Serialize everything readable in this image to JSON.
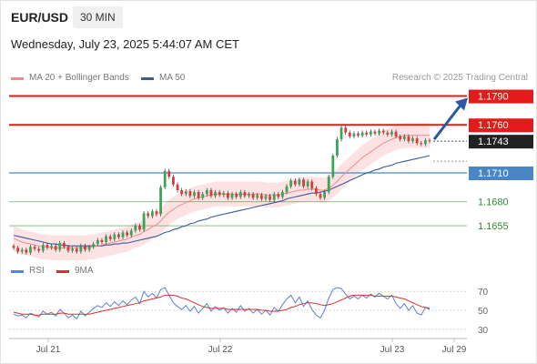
{
  "header": {
    "symbol": "EUR/USD",
    "timeframe": "30 MIN",
    "datetime": "Wednesday, July 23, 2025 5:44:07 AM CET",
    "credit": "Research © 2025 Trading Central"
  },
  "legend": {
    "ma20": "MA 20 + Bollinger Bands",
    "ma50": "MA 50",
    "rsi": "RSI",
    "ma9": "9MA"
  },
  "colors": {
    "resistance": "#e31b1b",
    "pivot": "#4a86c5",
    "support": "#2e8b2e",
    "bullish_candle": "#3aa655",
    "bearish_candle": "#d93a3a",
    "ma20": "#f08a8a",
    "ma50": "#3a5a9a",
    "bollinger_fill": "#fbd5d5",
    "rsi": "#5a82d2",
    "rsi_ma": "#d93030",
    "arrow": "#2a5aa6"
  },
  "chart_data": [
    {
      "type": "candlestick",
      "ylim": [
        1.162,
        1.18
      ],
      "x_ticks": [
        "Jul 21",
        "Jul 22",
        "Jul 23",
        "Jul 29"
      ],
      "levels": [
        {
          "value": 1.179,
          "label": "1.1790",
          "kind": "resistance"
        },
        {
          "value": 1.176,
          "label": "1.1760",
          "kind": "resistance"
        },
        {
          "value": 1.1743,
          "label": "1.1743",
          "kind": "current"
        },
        {
          "value": 1.171,
          "label": "1.1710",
          "kind": "pivot"
        },
        {
          "value": 1.168,
          "label": "1.1680",
          "kind": "support"
        },
        {
          "value": 1.1655,
          "label": "1.1655",
          "kind": "support"
        }
      ],
      "close": [
        1.1632,
        1.1628,
        1.163,
        1.1627,
        1.1633,
        1.1631,
        1.1629,
        1.1635,
        1.1632,
        1.1634,
        1.163,
        1.1637,
        1.1633,
        1.1629,
        1.1631,
        1.1628,
        1.1634,
        1.163,
        1.1633,
        1.1636,
        1.164,
        1.1638,
        1.1644,
        1.1641,
        1.1646,
        1.1643,
        1.1648,
        1.1645,
        1.165,
        1.1655,
        1.1651,
        1.1668,
        1.1665,
        1.167,
        1.1667,
        1.1695,
        1.1712,
        1.1706,
        1.1698,
        1.1692,
        1.1688,
        1.1691,
        1.1686,
        1.169,
        1.1684,
        1.1688,
        1.1692,
        1.1686,
        1.169,
        1.1687,
        1.1689,
        1.1684,
        1.1688,
        1.1685,
        1.169,
        1.1686,
        1.1688,
        1.1684,
        1.1687,
        1.1683,
        1.1686,
        1.1682,
        1.1688,
        1.1685,
        1.169,
        1.1696,
        1.1702,
        1.1698,
        1.1703,
        1.1696,
        1.1701,
        1.1694,
        1.1688,
        1.1684,
        1.169,
        1.1706,
        1.1728,
        1.1745,
        1.1757,
        1.1752,
        1.1748,
        1.1751,
        1.1749,
        1.1752,
        1.175,
        1.1753,
        1.1751,
        1.1754,
        1.1752,
        1.175,
        1.1753,
        1.1748,
        1.1745,
        1.1748,
        1.1743,
        1.1746,
        1.1741,
        1.174,
        1.1744,
        1.1743
      ],
      "ma20": [
        1.1642,
        1.164,
        1.1638,
        1.1637,
        1.1636,
        1.1635,
        1.1634,
        1.1633,
        1.1633,
        1.1632,
        1.1632,
        1.1632,
        1.1632,
        1.1632,
        1.1632,
        1.1632,
        1.1632,
        1.1632,
        1.1633,
        1.1633,
        1.1634,
        1.1635,
        1.1636,
        1.1637,
        1.1638,
        1.1639,
        1.164,
        1.1641,
        1.1643,
        1.1645,
        1.1646,
        1.1649,
        1.1651,
        1.1654,
        1.1656,
        1.166,
        1.1665,
        1.1669,
        1.1672,
        1.1675,
        1.1677,
        1.1679,
        1.1681,
        1.1683,
        1.1684,
        1.1685,
        1.1686,
        1.1687,
        1.1688,
        1.1688,
        1.1688,
        1.1688,
        1.1688,
        1.1688,
        1.1688,
        1.1688,
        1.1688,
        1.1688,
        1.1688,
        1.1688,
        1.1687,
        1.1687,
        1.1687,
        1.1687,
        1.1688,
        1.1689,
        1.169,
        1.1691,
        1.1692,
        1.1692,
        1.1693,
        1.1693,
        1.1693,
        1.1692,
        1.1692,
        1.1694,
        1.1697,
        1.1701,
        1.1706,
        1.171,
        1.1714,
        1.1718,
        1.1722,
        1.1726,
        1.1729,
        1.1732,
        1.1735,
        1.1738,
        1.1741,
        1.1743,
        1.1745,
        1.1747,
        1.1748,
        1.1749,
        1.1749,
        1.1749,
        1.1749,
        1.1749,
        1.1749,
        1.1749
      ],
      "ma50": [
        1.1645,
        1.1644,
        1.1643,
        1.1642,
        1.1641,
        1.164,
        1.1639,
        1.1638,
        1.1637,
        1.1636,
        1.1636,
        1.1635,
        1.1635,
        1.1634,
        1.1634,
        1.1634,
        1.1634,
        1.1634,
        1.1634,
        1.1634,
        1.1634,
        1.1634,
        1.1635,
        1.1635,
        1.1636,
        1.1636,
        1.1637,
        1.1637,
        1.1638,
        1.1639,
        1.164,
        1.1641,
        1.1642,
        1.1643,
        1.1644,
        1.1646,
        1.1648,
        1.1649,
        1.1651,
        1.1652,
        1.1654,
        1.1655,
        1.1657,
        1.1658,
        1.166,
        1.1661,
        1.1662,
        1.1664,
        1.1665,
        1.1666,
        1.1667,
        1.1668,
        1.1669,
        1.167,
        1.1671,
        1.1672,
        1.1673,
        1.1674,
        1.1675,
        1.1676,
        1.1677,
        1.1678,
        1.1679,
        1.168,
        1.1681,
        1.1683,
        1.1684,
        1.1685,
        1.1686,
        1.1687,
        1.1688,
        1.1689,
        1.1689,
        1.169,
        1.1691,
        1.1692,
        1.1694,
        1.1696,
        1.1698,
        1.17,
        1.1702,
        1.1704,
        1.1706,
        1.1708,
        1.171,
        1.1711,
        1.1713,
        1.1714,
        1.1716,
        1.1717,
        1.1718,
        1.172,
        1.1721,
        1.1722,
        1.1723,
        1.1724,
        1.1725,
        1.1726,
        1.1727,
        1.1728
      ]
    },
    {
      "type": "line",
      "name": "RSI",
      "ylim": [
        25,
        75
      ],
      "y_ticks": [
        70,
        50,
        30
      ],
      "series": [
        {
          "name": "RSI",
          "values": [
            46,
            44,
            45,
            42,
            47,
            45,
            43,
            49,
            46,
            48,
            44,
            51,
            47,
            42,
            45,
            41,
            49,
            44,
            48,
            52,
            55,
            53,
            58,
            54,
            59,
            55,
            60,
            56,
            61,
            64,
            57,
            70,
            64,
            68,
            63,
            72,
            74,
            66,
            58,
            54,
            51,
            55,
            49,
            54,
            47,
            52,
            57,
            49,
            54,
            50,
            53,
            47,
            52,
            48,
            55,
            49,
            52,
            47,
            51,
            46,
            50,
            45,
            53,
            49,
            56,
            62,
            66,
            58,
            64,
            54,
            60,
            51,
            45,
            42,
            50,
            63,
            72,
            74,
            73,
            67,
            62,
            65,
            62,
            66,
            63,
            67,
            64,
            68,
            65,
            62,
            66,
            57,
            52,
            57,
            50,
            55,
            47,
            45,
            53,
            51
          ]
        },
        {
          "name": "9MA",
          "values": [
            48,
            47,
            46,
            46,
            46,
            45,
            45,
            46,
            46,
            46,
            46,
            47,
            47,
            46,
            46,
            46,
            46,
            46,
            46,
            47,
            48,
            49,
            50,
            51,
            52,
            53,
            54,
            55,
            56,
            57,
            58,
            60,
            61,
            62,
            63,
            64,
            66,
            66,
            66,
            65,
            63,
            62,
            60,
            58,
            56,
            54,
            53,
            52,
            52,
            52,
            52,
            51,
            51,
            51,
            51,
            51,
            51,
            51,
            51,
            50,
            50,
            49,
            49,
            49,
            50,
            51,
            53,
            54,
            56,
            57,
            58,
            58,
            57,
            56,
            55,
            56,
            57,
            59,
            61,
            63,
            65,
            66,
            66,
            66,
            66,
            66,
            65,
            65,
            65,
            65,
            65,
            64,
            63,
            62,
            60,
            58,
            56,
            54,
            53,
            52
          ]
        }
      ]
    }
  ]
}
